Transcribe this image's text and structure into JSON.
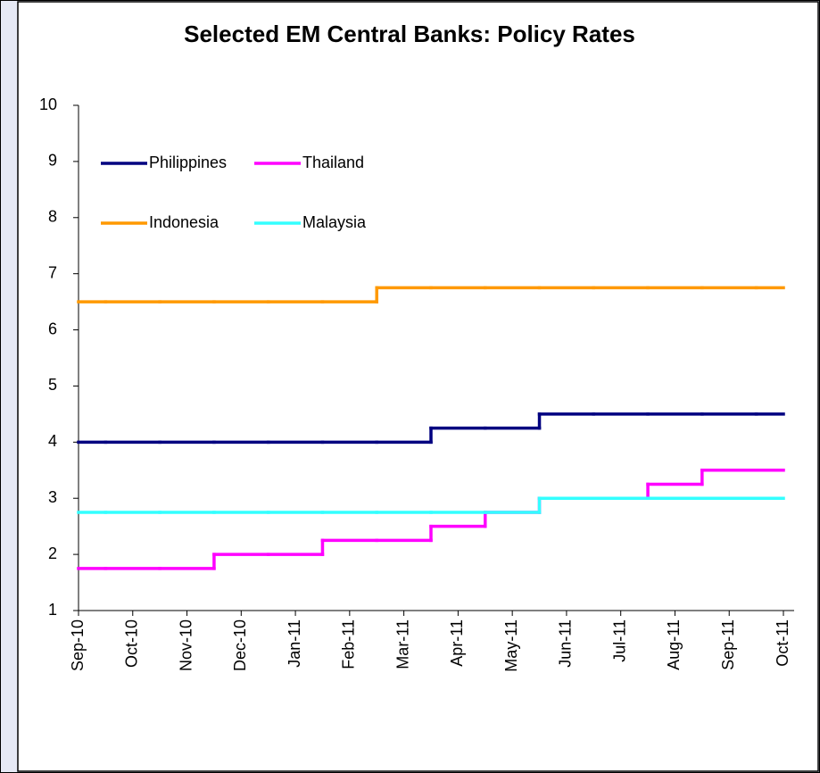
{
  "chart_data": {
    "type": "step",
    "title": "Selected  EM Central Banks: Policy Rates",
    "categories": [
      "Sep-10",
      "Oct-10",
      "Nov-10",
      "Dec-10",
      "Jan-11",
      "Feb-11",
      "Mar-11",
      "Apr-11",
      "May-11",
      "Jun-11",
      "Jul-11",
      "Aug-11",
      "Sep-11",
      "Oct-11"
    ],
    "series": [
      {
        "name": "Philippines",
        "color": "#000080",
        "values": [
          4,
          4,
          4,
          4,
          4,
          4,
          4,
          4.25,
          4.25,
          4.5,
          4.5,
          4.5,
          4.5,
          4.5
        ]
      },
      {
        "name": "Thailand",
        "color": "#ff00ff",
        "values": [
          1.75,
          1.75,
          1.75,
          2,
          2,
          2.25,
          2.25,
          2.5,
          2.75,
          3,
          3,
          3.25,
          3.5,
          3.5
        ]
      },
      {
        "name": "Indonesia",
        "color": "#ff9900",
        "values": [
          6.5,
          6.5,
          6.5,
          6.5,
          6.5,
          6.5,
          6.75,
          6.75,
          6.75,
          6.75,
          6.75,
          6.75,
          6.75,
          6.75
        ]
      },
      {
        "name": "Malaysia",
        "color": "#33ffff",
        "values": [
          2.75,
          2.75,
          2.75,
          2.75,
          2.75,
          2.75,
          2.75,
          2.75,
          2.75,
          3,
          3,
          3,
          3,
          3
        ]
      }
    ],
    "ylim": [
      1,
      10
    ],
    "yticks": [
      1,
      2,
      3,
      4,
      5,
      6,
      7,
      8,
      9,
      10
    ],
    "grid": false
  }
}
